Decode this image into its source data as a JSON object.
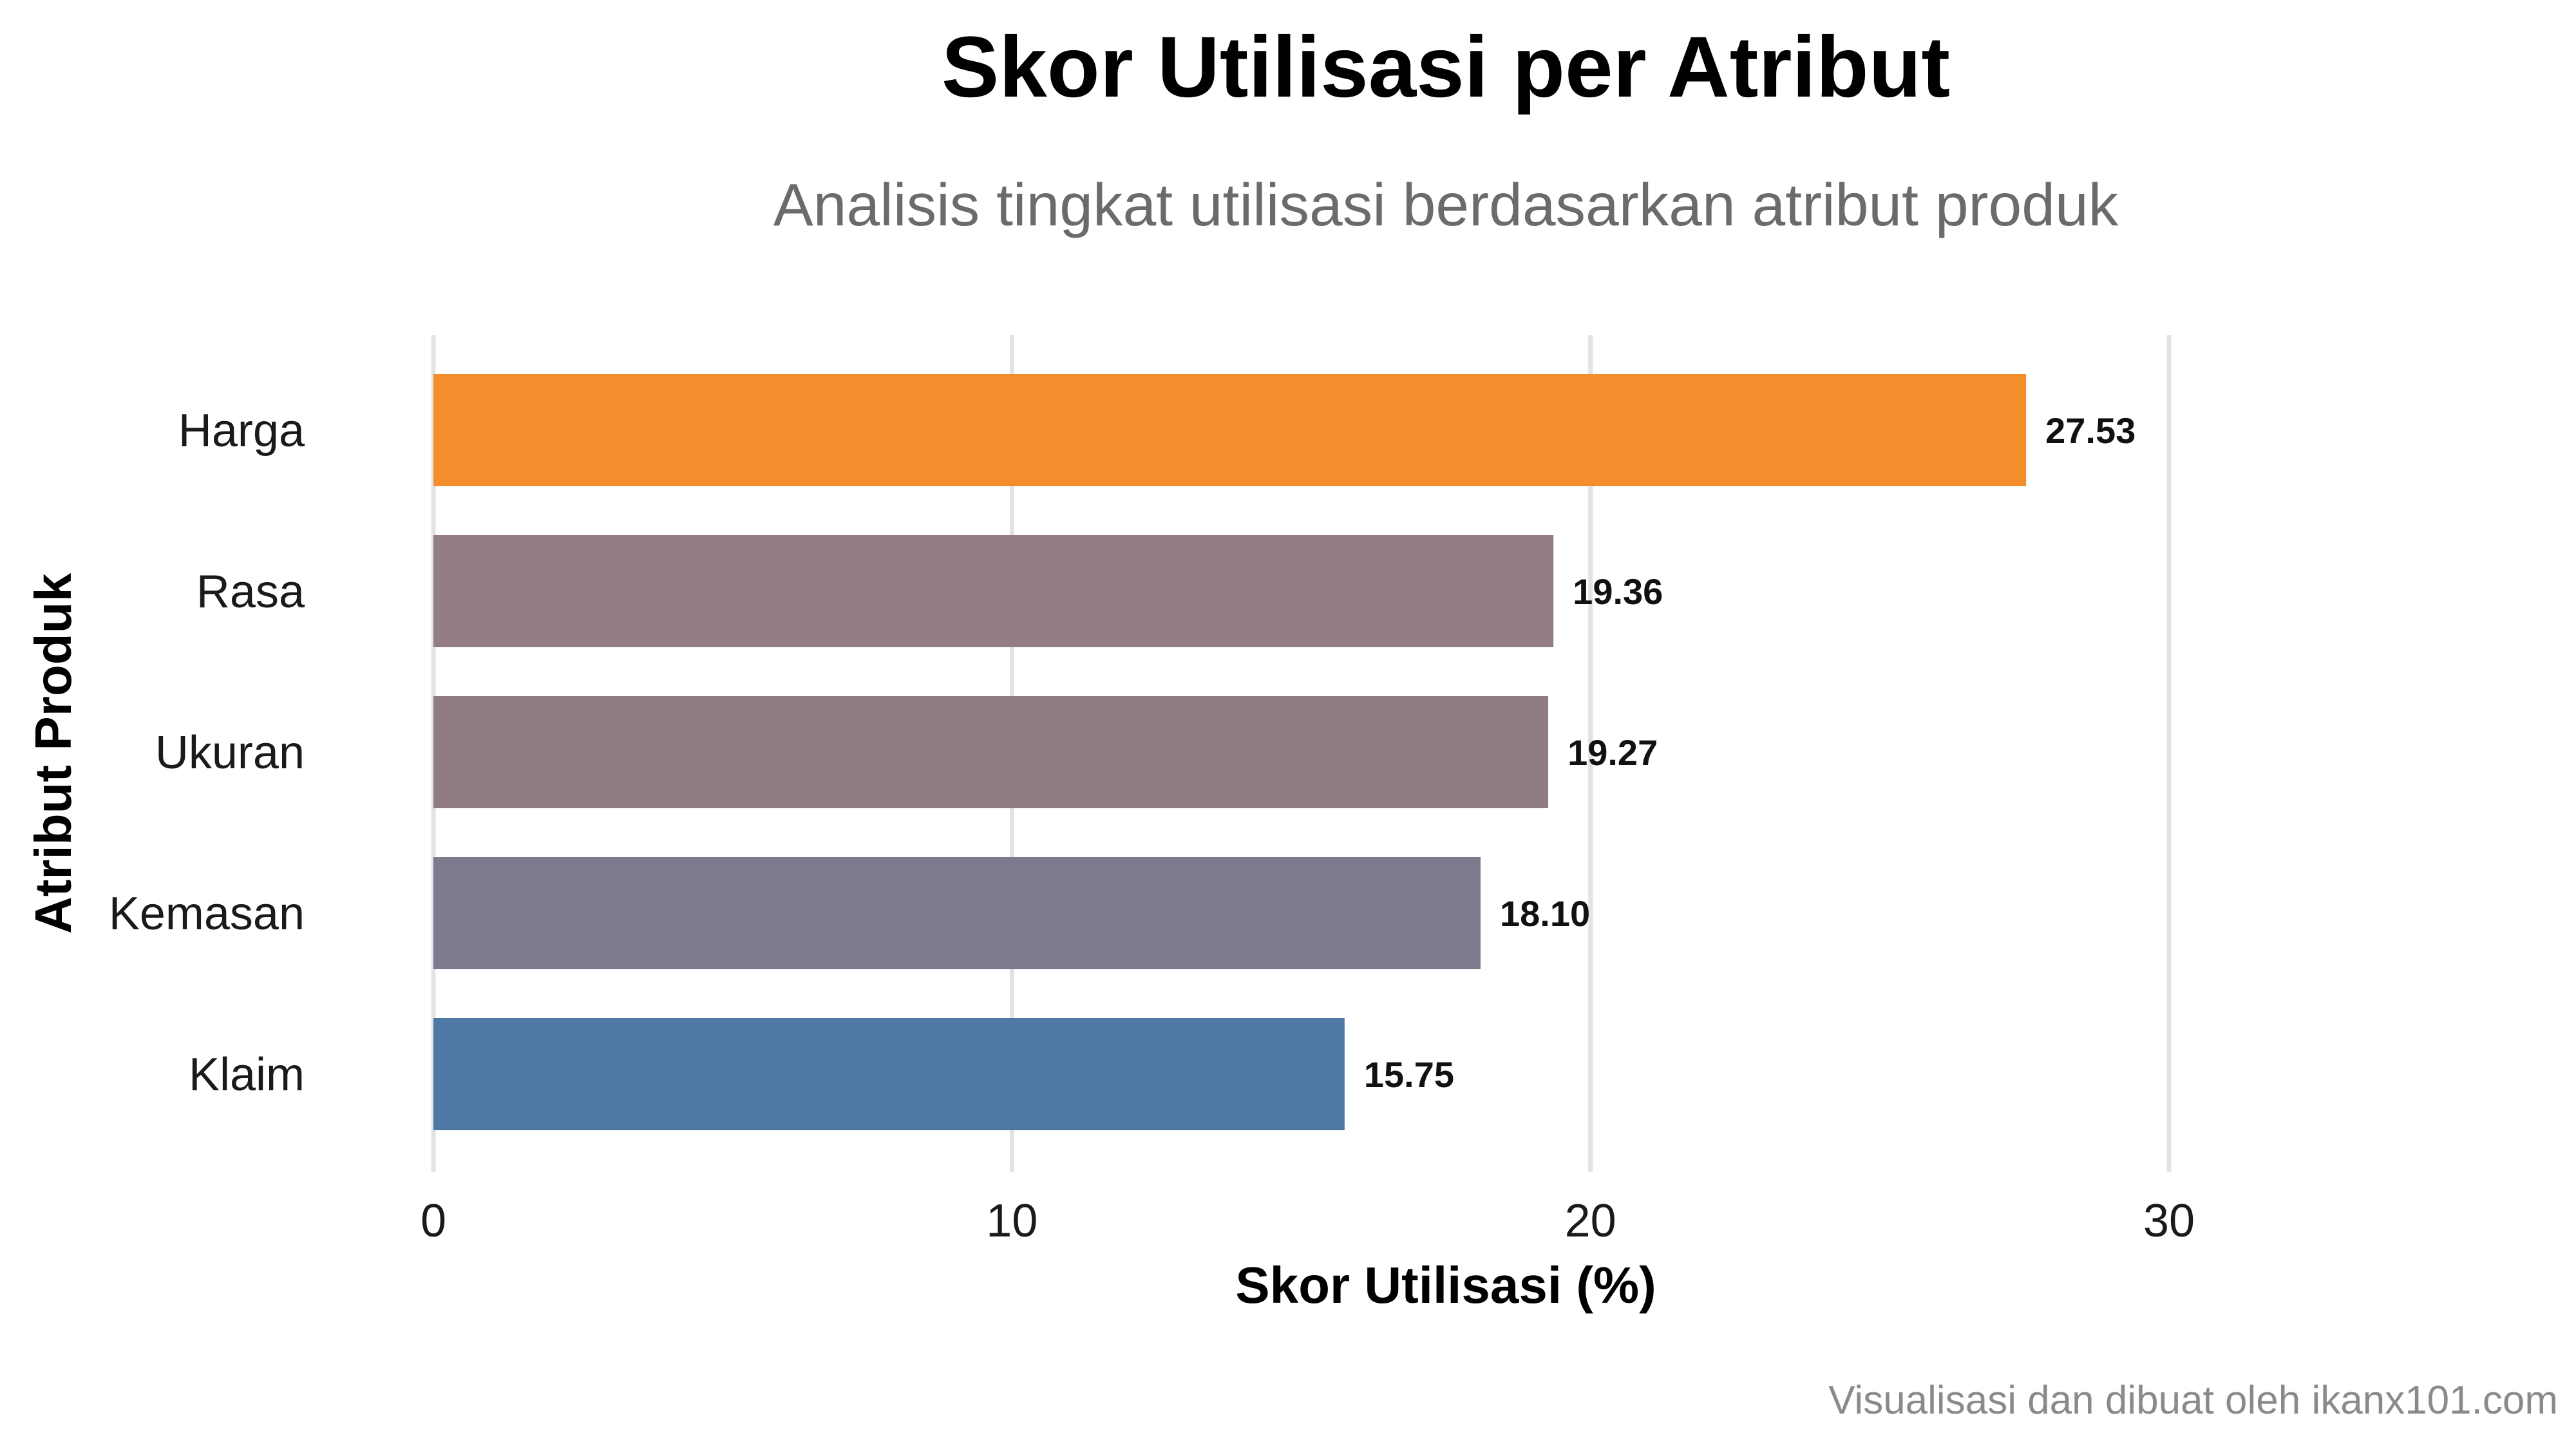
{
  "chart_data": {
    "type": "bar",
    "orientation": "horizontal",
    "title": "Skor Utilisasi per Atribut",
    "subtitle": "Analisis tingkat utilisasi berdasarkan atribut produk",
    "xlabel": "Skor Utilisasi (%)",
    "ylabel": "Atribut Produk",
    "xlim": [
      0,
      30
    ],
    "xticks": [
      0,
      10,
      20,
      30
    ],
    "categories": [
      "Harga",
      "Rasa",
      "Ukuran",
      "Kemasan",
      "Klaim"
    ],
    "values": [
      27.53,
      19.36,
      19.27,
      18.1,
      15.75
    ],
    "value_labels": [
      "27.53",
      "19.36",
      "19.27",
      "18.10",
      "15.75"
    ],
    "colors": [
      "#f28e2c",
      "#937d82",
      "#917c81",
      "#7d7a8d",
      "#4e79a7"
    ],
    "grid": "vertical",
    "legend": "none",
    "caption": "Visualisasi dan dibuat oleh ikanx101.com"
  }
}
